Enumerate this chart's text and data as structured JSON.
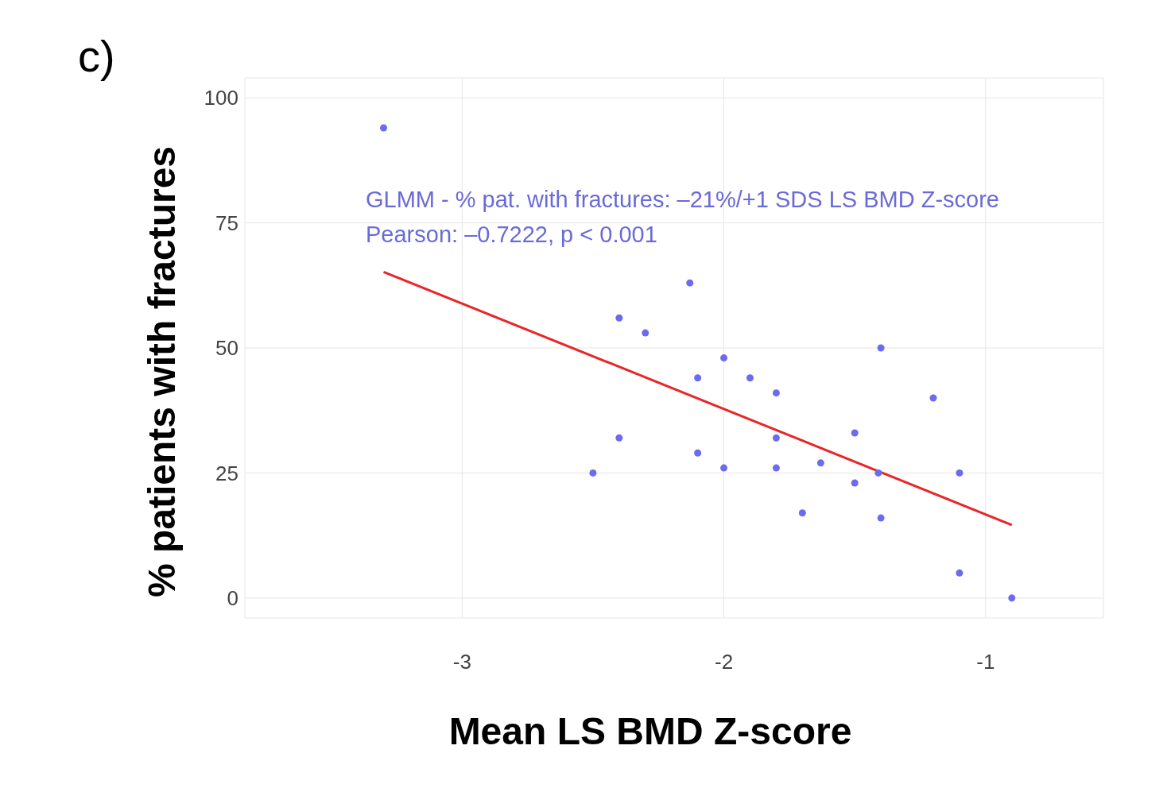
{
  "chart_data": {
    "type": "scatter",
    "title": "c)",
    "xlabel": "Mean LS BMD Z-score",
    "ylabel": "% patients with fractures",
    "annotations": [
      "GLMM - % pat. with fractures: –21%/+1 SDS LS BMD Z-score",
      "Pearson: –0.7222, p < 0.001"
    ],
    "xlim": [
      -3.83,
      -0.55
    ],
    "ylim": [
      -4,
      104
    ],
    "xticks": [
      -3,
      -2,
      -1
    ],
    "yticks": [
      0,
      25,
      50,
      75,
      100
    ],
    "grid": true,
    "series": [
      {
        "marker": "circle",
        "color": "#6b6bef",
        "x": [
          -3.3,
          -2.5,
          -2.4,
          -2.4,
          -2.3,
          -2.13,
          -2.1,
          -2.1,
          -2.0,
          -2.0,
          -1.9,
          -1.8,
          -1.8,
          -1.8,
          -1.7,
          -1.63,
          -1.5,
          -1.5,
          -1.41,
          -1.4,
          -1.4,
          -1.2,
          -1.1,
          -1.1,
          -0.9
        ],
        "values": [
          94,
          25,
          56,
          32,
          53,
          63,
          44,
          29,
          48,
          26,
          44,
          41,
          32,
          26,
          17,
          27,
          33,
          23,
          25,
          50,
          16,
          40,
          25,
          5,
          0
        ]
      },
      {
        "type": "line",
        "color": "#e8262a",
        "x": [
          -3.3,
          -0.9
        ],
        "values": [
          65.2,
          14.6
        ]
      }
    ]
  }
}
